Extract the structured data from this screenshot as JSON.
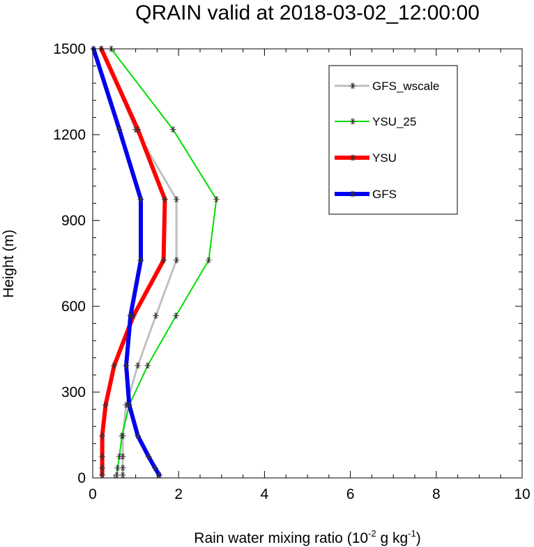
{
  "chart_data": {
    "type": "line",
    "title": "QRAIN valid at 2018-03-02_12:00:00",
    "xlabel": {
      "prefix": "Rain water mixing ratio (10",
      "exp1": "-2",
      "middle": " g kg",
      "exp2": "-1",
      "suffix": ")"
    },
    "ylabel": "Height (m)",
    "xlim": [
      0,
      10
    ],
    "ylim": [
      0,
      1500
    ],
    "xticks": [
      "0",
      "2",
      "4",
      "6",
      "8",
      "10"
    ],
    "yticks": [
      "0",
      "300",
      "600",
      "900",
      "1200",
      "1500"
    ],
    "xtick_values": [
      0,
      2,
      4,
      6,
      8,
      10
    ],
    "ytick_values": [
      0,
      300,
      600,
      900,
      1200,
      1500
    ],
    "legend_position": "top-right",
    "series": [
      {
        "name": "GFS_wscale",
        "color": "#c0c0c0",
        "width": 3,
        "points": [
          [
            0.7,
            10
          ],
          [
            0.7,
            35
          ],
          [
            0.7,
            75
          ],
          [
            0.7,
            147
          ],
          [
            0.78,
            255
          ],
          [
            1.05,
            393
          ],
          [
            1.47,
            567
          ],
          [
            1.95,
            761
          ],
          [
            1.95,
            974
          ],
          [
            1.0,
            1218
          ],
          [
            0.2,
            1500
          ]
        ]
      },
      {
        "name": "YSU_25",
        "color": "#00dd00",
        "width": 2,
        "points": [
          [
            0.56,
            10
          ],
          [
            0.58,
            35
          ],
          [
            0.62,
            75
          ],
          [
            0.68,
            147
          ],
          [
            0.85,
            255
          ],
          [
            1.28,
            393
          ],
          [
            1.94,
            567
          ],
          [
            2.7,
            761
          ],
          [
            2.88,
            974
          ],
          [
            1.87,
            1218
          ],
          [
            0.43,
            1500
          ]
        ]
      },
      {
        "name": "YSU",
        "color": "#ff0000",
        "width": 6,
        "points": [
          [
            0.22,
            10
          ],
          [
            0.22,
            35
          ],
          [
            0.22,
            75
          ],
          [
            0.22,
            147
          ],
          [
            0.3,
            255
          ],
          [
            0.5,
            393
          ],
          [
            0.95,
            567
          ],
          [
            1.65,
            761
          ],
          [
            1.68,
            974
          ],
          [
            1.05,
            1218
          ],
          [
            0.2,
            1500
          ]
        ]
      },
      {
        "name": "GFS",
        "color": "#0000ee",
        "width": 6,
        "points": [
          [
            1.55,
            10
          ],
          [
            1.45,
            35
          ],
          [
            1.3,
            75
          ],
          [
            1.05,
            147
          ],
          [
            0.85,
            255
          ],
          [
            0.78,
            393
          ],
          [
            0.88,
            567
          ],
          [
            1.12,
            761
          ],
          [
            1.12,
            974
          ],
          [
            0.62,
            1218
          ],
          [
            0.02,
            1500
          ]
        ]
      }
    ]
  }
}
